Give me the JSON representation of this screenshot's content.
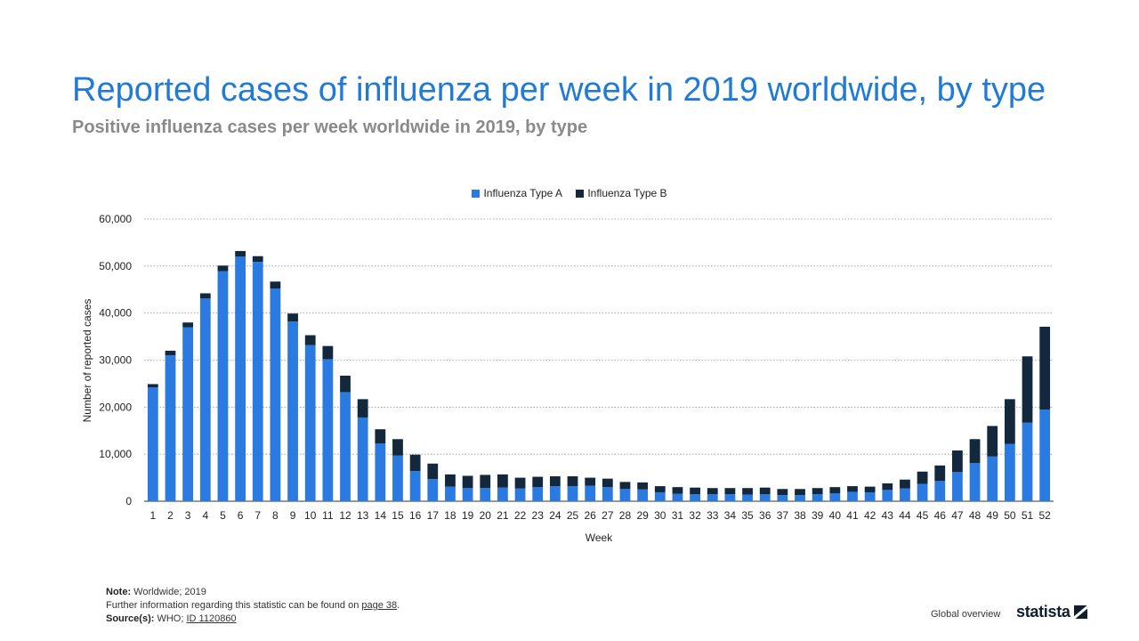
{
  "header": {
    "title": "Reported cases of influenza per week in 2019 worldwide, by type",
    "subtitle": "Positive influenza cases per week worldwide in 2019, by type"
  },
  "legend": {
    "series_a": "Influenza Type A",
    "series_b": "Influenza Type B"
  },
  "colors": {
    "type_a": "#2a7ae2",
    "type_b": "#13283d",
    "grid": "#9a9a9a",
    "axis_text": "#222222"
  },
  "footer": {
    "note_label": "Note:",
    "note_text": "Worldwide; 2019",
    "further_text": "Further information regarding this statistic can be found on",
    "further_link": "page 38",
    "further_end": ".",
    "source_label": "Source(s):",
    "source_text": "WHO;",
    "source_link": "ID 1120860",
    "global_overview": "Global overview",
    "logo_text": "statista"
  },
  "chart_data": {
    "type": "bar",
    "stacked": true,
    "xlabel": "Week",
    "ylabel": "Number of reported cases",
    "ylim": [
      0,
      60000
    ],
    "yticks": [
      0,
      10000,
      20000,
      30000,
      40000,
      50000,
      60000
    ],
    "ytick_labels": [
      "0",
      "10,000",
      "20,000",
      "30,000",
      "40,000",
      "50,000",
      "60,000"
    ],
    "grid": true,
    "legend_position": "top-center",
    "categories": [
      "1",
      "2",
      "3",
      "4",
      "5",
      "6",
      "7",
      "8",
      "9",
      "10",
      "11",
      "12",
      "13",
      "14",
      "15",
      "16",
      "17",
      "18",
      "19",
      "20",
      "21",
      "22",
      "23",
      "24",
      "25",
      "26",
      "27",
      "28",
      "29",
      "30",
      "31",
      "32",
      "33",
      "34",
      "35",
      "36",
      "37",
      "38",
      "39",
      "40",
      "41",
      "42",
      "43",
      "44",
      "45",
      "46",
      "47",
      "48",
      "49",
      "50",
      "51",
      "52"
    ],
    "series": [
      {
        "name": "Influenza Type A",
        "values": [
          24200,
          31000,
          37000,
          43100,
          48900,
          52000,
          50900,
          45200,
          38200,
          33200,
          30200,
          23200,
          17800,
          12300,
          9700,
          6400,
          4700,
          3100,
          2800,
          2800,
          2900,
          2700,
          3000,
          3200,
          3200,
          3300,
          3000,
          2600,
          2500,
          1900,
          1600,
          1500,
          1500,
          1500,
          1400,
          1500,
          1300,
          1300,
          1500,
          1700,
          2000,
          1900,
          2400,
          2700,
          3700,
          4300,
          6200,
          8100,
          9500,
          12200,
          16700,
          19500
        ]
      },
      {
        "name": "Influenza Type B",
        "values": [
          700,
          1000,
          1000,
          1100,
          1200,
          1200,
          1200,
          1500,
          1700,
          2100,
          2800,
          3500,
          3900,
          3000,
          3500,
          3500,
          3300,
          2600,
          2600,
          2800,
          2800,
          2300,
          2200,
          2100,
          2100,
          1700,
          1800,
          1500,
          1500,
          1300,
          1400,
          1400,
          1300,
          1300,
          1400,
          1400,
          1300,
          1300,
          1300,
          1300,
          1200,
          1200,
          1400,
          1900,
          2600,
          3300,
          4600,
          5100,
          6500,
          9500,
          14100,
          17600
        ]
      }
    ]
  }
}
